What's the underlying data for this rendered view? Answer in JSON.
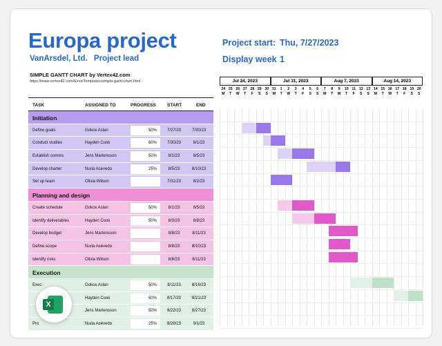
{
  "title": "Europa project",
  "company": "VanArsdel, Ltd.",
  "project_lead": "Project lead",
  "project_start_label": "Project start:",
  "project_start_value": "Thu, 7/27/2023",
  "display_week_label": "Display week",
  "display_week_value": "1",
  "credit": "SIMPLE GANTT CHART by Vertex42.com",
  "url": "https://www.vertex42.com/ExcelTemplates/simple-gantt-chart.html",
  "columns": {
    "task": "TASK",
    "assigned": "ASSIGNED TO",
    "progress": "PROGRESS",
    "start": "START",
    "end": "END"
  },
  "weeks": [
    "Jul 24, 2023",
    "Jul 31, 2023",
    "Aug 7, 2023",
    "Aug 14, 2023"
  ],
  "day_numbers": [
    "24",
    "25",
    "26",
    "27",
    "28",
    "29",
    "30",
    "31",
    "1",
    "2",
    "3",
    "4",
    "5",
    "6",
    "7",
    "8",
    "9",
    "10",
    "11",
    "12",
    "13",
    "14",
    "15",
    "16",
    "17",
    "18",
    "19",
    "20"
  ],
  "day_letters": [
    "M",
    "T",
    "W",
    "T",
    "F",
    "S",
    "S",
    "M",
    "T",
    "W",
    "T",
    "F",
    "S",
    "S",
    "M",
    "T",
    "W",
    "T",
    "F",
    "S",
    "S",
    "M",
    "T",
    "W",
    "T",
    "F",
    "S",
    "S"
  ],
  "rows": [
    {
      "kind": "phase",
      "label": "Initiation",
      "color": "purple"
    },
    {
      "kind": "task",
      "task": "Define goals",
      "assigned": "Gokce Aslan",
      "progress": "50%",
      "start": "7/27/23",
      "end": "7/30/23",
      "color": "purple",
      "start_day": 3,
      "days": 4,
      "done": 0.5
    },
    {
      "kind": "task",
      "task": "Conduct studies",
      "assigned": "Hayden Cook",
      "progress": "60%",
      "start": "7/30/23",
      "end": "8/1/23",
      "color": "purple",
      "start_day": 6,
      "days": 3,
      "done": 0.6
    },
    {
      "kind": "task",
      "task": "Establish comms",
      "assigned": "Jens Martensson",
      "progress": "50%",
      "start": "8/1/23",
      "end": "8/5/23",
      "color": "purple",
      "start_day": 8,
      "days": 5,
      "done": 0.5
    },
    {
      "kind": "task",
      "task": "Develop charter",
      "assigned": "Nuria Acevedo",
      "progress": "25%",
      "start": "8/5/23",
      "end": "8/10/23",
      "color": "purple",
      "start_day": 12,
      "days": 6,
      "done": 0.25
    },
    {
      "kind": "task",
      "task": "Set up team",
      "assigned": "Olivia Wilson",
      "progress": "",
      "start": "7/31/23",
      "end": "8/2/23",
      "color": "purple",
      "start_day": 7,
      "days": 3,
      "done": 1.0
    },
    {
      "kind": "phase",
      "label": "Planning and design",
      "color": "pink"
    },
    {
      "kind": "task",
      "task": "Create schedule",
      "assigned": "Gokce Aslan",
      "progress": "50%",
      "start": "8/1/23",
      "end": "8/5/23",
      "color": "pink",
      "start_day": 8,
      "days": 5,
      "done": 0.5
    },
    {
      "kind": "task",
      "task": "Identify deliverables",
      "assigned": "Hayden Cook",
      "progress": "50%",
      "start": "8/3/23",
      "end": "8/8/23",
      "color": "pink",
      "start_day": 10,
      "days": 6,
      "done": 0.5
    },
    {
      "kind": "task",
      "task": "Develop budget",
      "assigned": "Jens Martensson",
      "progress": "",
      "start": "8/8/23",
      "end": "8/11/23",
      "color": "pink",
      "start_day": 15,
      "days": 4,
      "done": 1.0
    },
    {
      "kind": "task",
      "task": "Define scope",
      "assigned": "Nuria Acevedo",
      "progress": "",
      "start": "8/8/23",
      "end": "8/10/23",
      "color": "pink",
      "start_day": 15,
      "days": 3,
      "done": 1.0
    },
    {
      "kind": "task",
      "task": "Identify risks",
      "assigned": "Olivia Wilson",
      "progress": "",
      "start": "8/8/23",
      "end": "8/11/23",
      "color": "pink",
      "start_day": 15,
      "days": 4,
      "done": 1.0
    },
    {
      "kind": "phase",
      "label": "Execution",
      "color": "green"
    },
    {
      "kind": "task",
      "task": "Exec",
      "assigned": "Gokce Aslan",
      "progress": "50%",
      "start": "8/11/23",
      "end": "8/16/23",
      "color": "green",
      "start_day": 18,
      "days": 6,
      "done": 0.5
    },
    {
      "kind": "task",
      "task": "",
      "assigned": "Hayden Cook",
      "progress": "60%",
      "start": "8/17/23",
      "end": "8/21/23",
      "color": "green",
      "start_day": 24,
      "days": 5,
      "done": 0.6
    },
    {
      "kind": "task",
      "task": "",
      "assigned": "Jens Martensson",
      "progress": "50%",
      "start": "8/22/23",
      "end": "8/27/23",
      "color": "green",
      "start_day": 29,
      "days": 6,
      "done": 0.5
    },
    {
      "kind": "task",
      "task": "Pro",
      "assigned": "Nuria Acevedo",
      "progress": "25%",
      "start": "8/28/23",
      "end": "9/1/23",
      "color": "green",
      "start_day": 35,
      "days": 5,
      "done": 0.25
    }
  ],
  "colors": {
    "purple_bg": "#d2c6f4",
    "purple_phase": "#b89cf0",
    "purple_done": "#9a78ea",
    "purple_todo": "#ddd3f7",
    "pink_bg": "#f5c3e6",
    "pink_phase": "#ee8fd5",
    "pink_done": "#e158c9",
    "pink_todo": "#f6c8ea",
    "green_bg": "#e1f0e4",
    "green_phase": "#c6e3cc",
    "green_done": "#bfe1c6",
    "green_todo": "#e2f1e5"
  },
  "app_icon": "excel-icon"
}
